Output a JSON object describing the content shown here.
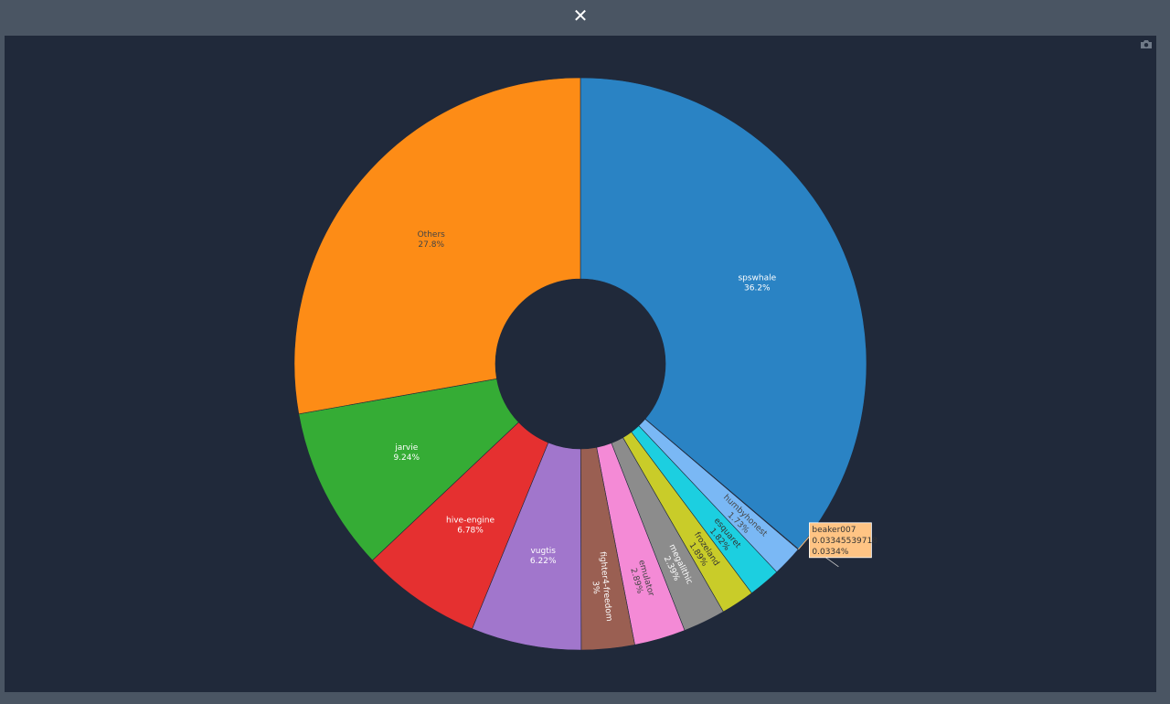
{
  "dialog": {
    "close_icon": "close-icon",
    "close_glyph": "✕"
  },
  "toolbar": {
    "camera_icon": "camera-icon"
  },
  "chart_data": {
    "type": "pie",
    "hole": true,
    "direction": "clockwise",
    "start": "top",
    "slices": [
      {
        "label": "spswhale",
        "percent": 36.2,
        "pct_text": "36.2%",
        "color": "#2a83c4",
        "text_color": "#ffffff",
        "label_mode": "horizontal"
      },
      {
        "label": "beaker007",
        "percent": 0.0334,
        "pct_text": "0.0334%",
        "value": "0.03345539718",
        "color": "#ffbf80",
        "text_color": "#333333",
        "label_mode": "hover"
      },
      {
        "label": "humbyhonest",
        "percent": 1.73,
        "pct_text": "1.73%",
        "color": "#7ab8f5",
        "text_color": "#444444",
        "label_mode": "radial"
      },
      {
        "label": "esquaret",
        "percent": 1.82,
        "pct_text": "1.82%",
        "color": "#1ccfe0",
        "text_color": "#333333",
        "label_mode": "radial"
      },
      {
        "label": "frozeland",
        "percent": 1.89,
        "pct_text": "1.89%",
        "color": "#c9cc29",
        "text_color": "#333333",
        "label_mode": "radial"
      },
      {
        "label": "megalithic",
        "percent": 2.39,
        "pct_text": "2.39%",
        "color": "#8c8c8c",
        "text_color": "#ffffff",
        "label_mode": "radial"
      },
      {
        "label": "emulator",
        "percent": 2.89,
        "pct_text": "2.89%",
        "color": "#f48ad6",
        "text_color": "#444444",
        "label_mode": "radial"
      },
      {
        "label": "fighter4-freedom",
        "percent": 3,
        "pct_text": "3%",
        "color": "#9a5f52",
        "text_color": "#ffffff",
        "label_mode": "radial"
      },
      {
        "label": "vugtis",
        "percent": 6.22,
        "pct_text": "6.22%",
        "color": "#a176cc",
        "text_color": "#ffffff",
        "label_mode": "horizontal"
      },
      {
        "label": "hive-engine",
        "percent": 6.78,
        "pct_text": "6.78%",
        "color": "#e53030",
        "text_color": "#ffffff",
        "label_mode": "horizontal"
      },
      {
        "label": "jarvie",
        "percent": 9.24,
        "pct_text": "9.24%",
        "color": "#35ac35",
        "text_color": "#ffffff",
        "label_mode": "horizontal"
      },
      {
        "label": "Others",
        "percent": 27.8,
        "pct_text": "27.8%",
        "color": "#fd8c16",
        "text_color": "#444444",
        "label_mode": "horizontal"
      }
    ],
    "hover": {
      "slice": "beaker007",
      "lines": [
        "beaker007",
        "0.03345539718",
        "0.0334%"
      ],
      "bg": "#ffc484"
    }
  }
}
